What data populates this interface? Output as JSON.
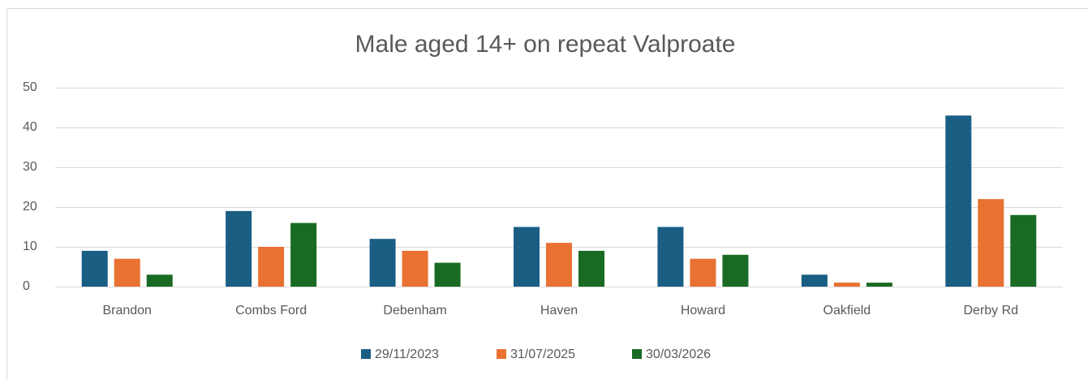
{
  "chart_data": {
    "type": "bar",
    "title": "Male aged 14+ on repeat Valproate",
    "categories": [
      "Brandon",
      "Combs Ford",
      "Debenham",
      "Haven",
      "Howard",
      "Oakfield",
      "Derby Rd"
    ],
    "series": [
      {
        "name": "29/11/2023",
        "color": "#1a5e83",
        "values": [
          9,
          19,
          12,
          15,
          15,
          3,
          43
        ]
      },
      {
        "name": "31/07/2025",
        "color": "#e97132",
        "values": [
          7,
          10,
          9,
          11,
          7,
          1,
          22
        ]
      },
      {
        "name": "30/03/2026",
        "color": "#196b24",
        "values": [
          3,
          16,
          6,
          9,
          8,
          1,
          18
        ]
      }
    ],
    "ylim": [
      0,
      50
    ],
    "yticks": [
      0,
      10,
      20,
      30,
      40,
      50
    ],
    "grid": true,
    "legend": "bottom"
  }
}
